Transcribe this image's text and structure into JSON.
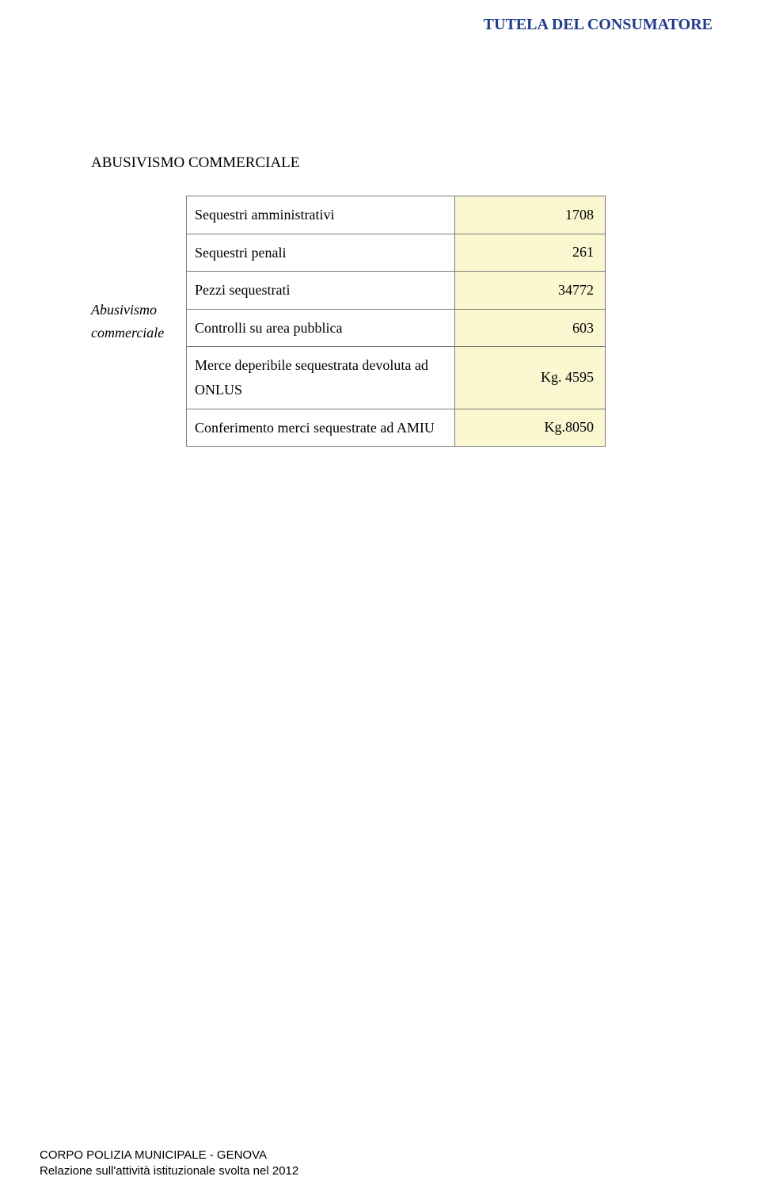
{
  "header": {
    "title": "TUTELA DEL CONSUMATORE"
  },
  "section": {
    "title": "ABUSIVISMO COMMERCIALE",
    "row_label_1": "Abusivismo",
    "row_label_2": "commerciale"
  },
  "table": {
    "rows": [
      {
        "desc": "Sequestri amministrativi",
        "val": "1708"
      },
      {
        "desc": "Sequestri penali",
        "val": "261"
      },
      {
        "desc": "Pezzi sequestrati",
        "val": "34772"
      },
      {
        "desc": "Controlli su area pubblica",
        "val": "603"
      },
      {
        "desc": "Merce deperibile sequestrata devoluta ad ONLUS",
        "val": "Kg. 4595"
      },
      {
        "desc": "Conferimento merci sequestrate ad AMIU",
        "val": "Kg.8050"
      }
    ],
    "cell_bg_value": "#fbf7d1",
    "cell_bg_desc": "#ffffff",
    "border_color": "#7a7a7a"
  },
  "footer": {
    "line1": "CORPO POLIZIA MUNICIPALE - GENOVA",
    "line2": "Relazione sull'attività istituzionale svolta nel 2012"
  },
  "colors": {
    "header_text": "#1f3b8a",
    "body_text": "#000000",
    "background": "#ffffff"
  }
}
